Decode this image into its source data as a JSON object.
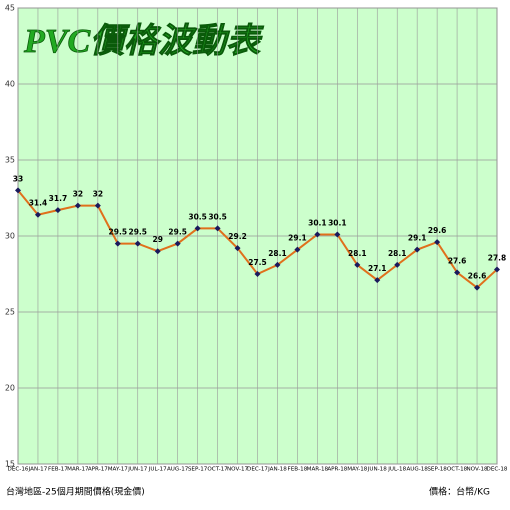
{
  "chart_data": {
    "type": "line",
    "title": "PVC價格波動表",
    "categories": [
      "DEC-16",
      "JAN-17",
      "FEB-17",
      "MAR-17",
      "APR-17",
      "MAY-17",
      "JUN-17",
      "JUL-17",
      "AUG-17",
      "SEP-17",
      "OCT-17",
      "NOV-17",
      "DEC-17",
      "JAN-18",
      "FEB-18",
      "MAR-18",
      "APR-18",
      "MAY-18",
      "JUN-18",
      "JUL-18",
      "AUG-18",
      "SEP-18",
      "OCT-18",
      "NOV-18",
      "DEC-18"
    ],
    "series": [
      {
        "color": "#e0701c",
        "values": [
          33,
          31.4,
          31.7,
          32,
          32,
          29.5,
          29.5,
          29,
          29.5,
          30.5,
          30.5,
          29.2,
          27.5,
          28.1,
          29.1,
          30.1,
          30.1,
          28.1,
          27.1,
          28.1,
          29.1,
          29.6,
          27.6,
          26.6,
          27.8
        ]
      }
    ],
    "ylim": [
      15,
      45
    ],
    "yticks": [
      15,
      20,
      25,
      30,
      35,
      40,
      45
    ],
    "grid": true,
    "marker_color": "#1a1a5c",
    "background": "#ccffcc",
    "footnote_left": "台灣地區-25個月期間價格(現金價)",
    "footnote_right": "價格：台幣/KG"
  }
}
